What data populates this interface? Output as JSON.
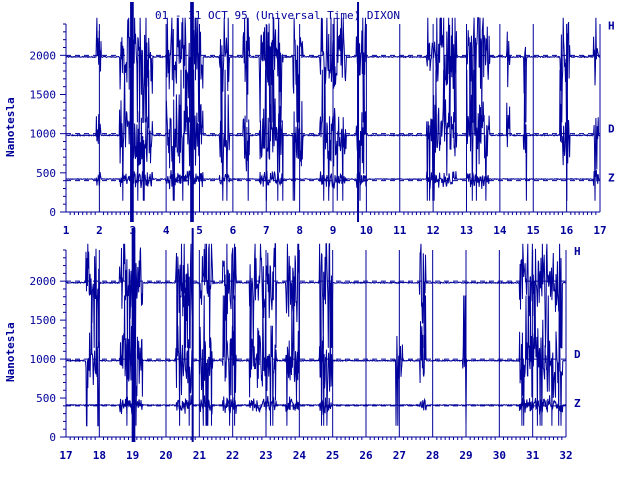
{
  "chart_data": {
    "type": "line",
    "title": "01 - 31 OCT 95 (Universal Time) DIXON",
    "ylabel": "Nanotesla",
    "units": "nT",
    "colors": {
      "ink": "#00009a",
      "background": "#ffffff"
    },
    "baselines": {
      "H": 2000,
      "D": 1000,
      "Z": 400
    },
    "panels": [
      {
        "xlim": [
          1,
          17
        ],
        "xticks": [
          "1",
          "2",
          "3",
          "4",
          "5",
          "6",
          "7",
          "8",
          "9",
          "10",
          "11",
          "12",
          "13",
          "14",
          "15",
          "16",
          "17"
        ],
        "ylim": [
          0,
          2400
        ],
        "yticks": [
          "0",
          "500",
          "1000",
          "1500",
          "2000"
        ],
        "series": [
          {
            "name": "H",
            "baseline": 2000,
            "quiet_level": 1980,
            "disturbed_intervals": [
              [
                1.9,
                2.05
              ],
              [
                2.6,
                3.6
              ],
              [
                4.0,
                5.1
              ],
              [
                5.6,
                5.9
              ],
              [
                6.3,
                6.5
              ],
              [
                6.8,
                7.5
              ],
              [
                7.8,
                8.1
              ],
              [
                8.6,
                9.4
              ],
              [
                9.7,
                10.0
              ],
              [
                11.8,
                12.7
              ],
              [
                13.0,
                13.7
              ],
              [
                14.2,
                14.3
              ],
              [
                14.7,
                14.8
              ],
              [
                15.8,
                16.1
              ],
              [
                16.8,
                16.95
              ]
            ]
          },
          {
            "name": "D",
            "baseline": 1000,
            "quiet_level": 980,
            "disturbed_intervals": [
              [
                1.9,
                2.05
              ],
              [
                2.6,
                3.6
              ],
              [
                4.0,
                5.1
              ],
              [
                5.6,
                5.9
              ],
              [
                6.3,
                6.5
              ],
              [
                6.8,
                7.5
              ],
              [
                7.8,
                8.1
              ],
              [
                8.6,
                9.4
              ],
              [
                9.7,
                10.0
              ],
              [
                11.8,
                12.7
              ],
              [
                13.0,
                13.7
              ],
              [
                14.2,
                14.3
              ],
              [
                14.7,
                14.8
              ],
              [
                15.8,
                16.1
              ],
              [
                16.8,
                16.95
              ]
            ]
          },
          {
            "name": "Z",
            "baseline": 400,
            "quiet_level": 420,
            "disturbed_intervals": [
              [
                1.9,
                2.05
              ],
              [
                2.6,
                3.6
              ],
              [
                4.0,
                5.1
              ],
              [
                5.6,
                5.9
              ],
              [
                6.8,
                7.5
              ],
              [
                8.6,
                9.4
              ],
              [
                9.7,
                10.0
              ],
              [
                11.8,
                12.7
              ],
              [
                13.0,
                13.7
              ],
              [
                16.8,
                16.95
              ]
            ]
          }
        ]
      },
      {
        "xlim": [
          17,
          32
        ],
        "xticks": [
          "17",
          "18",
          "19",
          "20",
          "21",
          "22",
          "23",
          "24",
          "25",
          "26",
          "27",
          "28",
          "29",
          "30",
          "31",
          "32"
        ],
        "ylim": [
          0,
          2400
        ],
        "yticks": [
          "0",
          "500",
          "1000",
          "1500",
          "2000"
        ],
        "series": [
          {
            "name": "H",
            "baseline": 2000,
            "quiet_level": 1980,
            "disturbed_intervals": [
              [
                17.6,
                18.0
              ],
              [
                18.6,
                19.3
              ],
              [
                20.3,
                20.8
              ],
              [
                21.0,
                21.4
              ],
              [
                21.7,
                22.1
              ],
              [
                22.5,
                23.3
              ],
              [
                23.6,
                24.0
              ],
              [
                24.6,
                25.0
              ],
              [
                27.6,
                27.8
              ],
              [
                30.6,
                31.9
              ]
            ]
          },
          {
            "name": "D",
            "baseline": 1000,
            "quiet_level": 980,
            "disturbed_intervals": [
              [
                17.6,
                18.0
              ],
              [
                18.6,
                19.3
              ],
              [
                20.3,
                20.8
              ],
              [
                21.0,
                21.4
              ],
              [
                21.7,
                22.1
              ],
              [
                22.5,
                23.3
              ],
              [
                23.6,
                24.0
              ],
              [
                24.6,
                25.0
              ],
              [
                26.9,
                27.1
              ],
              [
                27.6,
                27.8
              ],
              [
                28.9,
                29.0
              ],
              [
                30.6,
                31.9
              ]
            ]
          },
          {
            "name": "Z",
            "baseline": 400,
            "quiet_level": 410,
            "disturbed_intervals": [
              [
                18.6,
                19.3
              ],
              [
                20.3,
                20.8
              ],
              [
                21.0,
                21.4
              ],
              [
                21.7,
                22.1
              ],
              [
                22.5,
                23.3
              ],
              [
                23.6,
                24.0
              ],
              [
                24.6,
                25.0
              ],
              [
                27.6,
                27.8
              ],
              [
                30.6,
                31.9
              ]
            ]
          }
        ]
      }
    ]
  }
}
